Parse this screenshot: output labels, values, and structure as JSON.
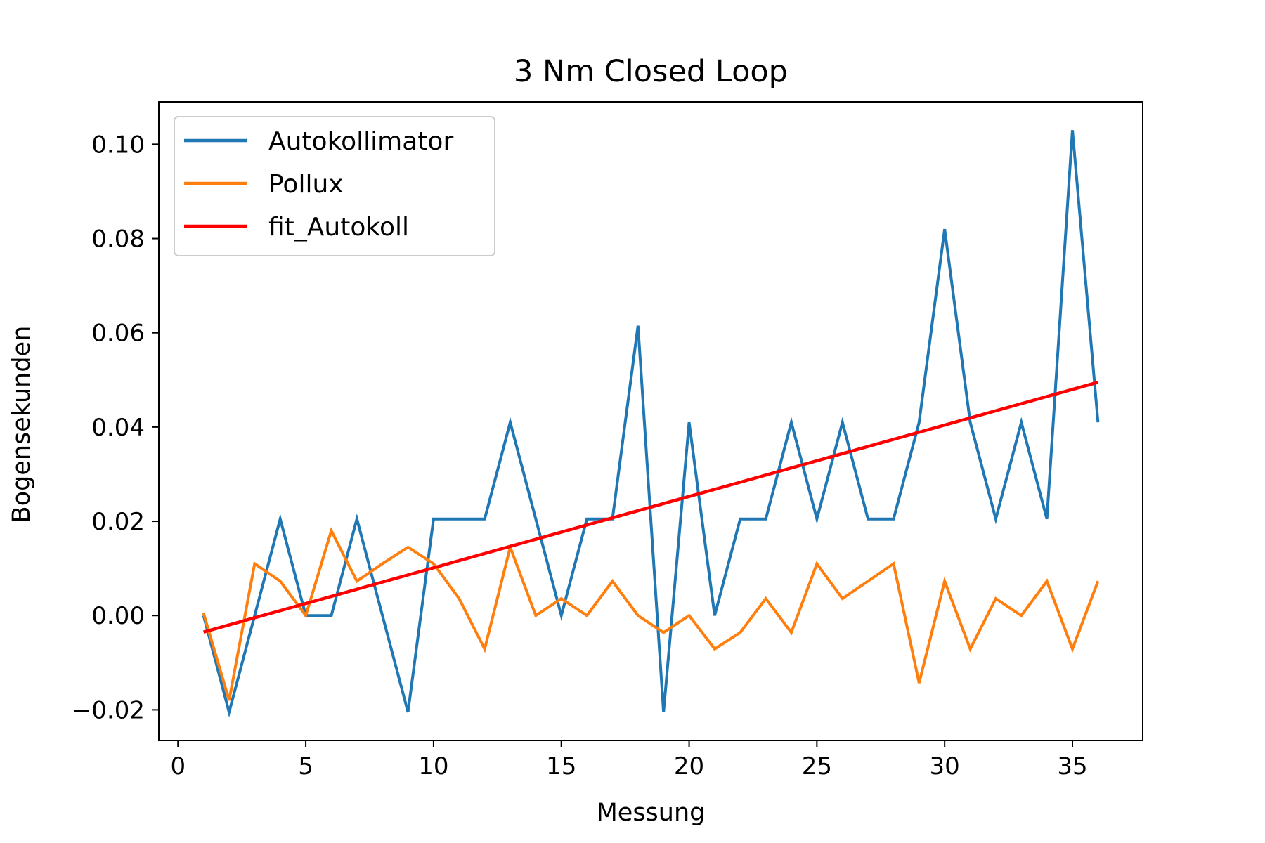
{
  "chart_data": {
    "type": "line",
    "title": "3 Nm Closed Loop",
    "xlabel": "Messung",
    "ylabel": "Bogensekunden",
    "xlim": [
      -0.75,
      37.75
    ],
    "ylim": [
      -0.0265,
      0.109
    ],
    "xticks": [
      0,
      5,
      10,
      15,
      20,
      25,
      30,
      35
    ],
    "xtick_labels": [
      "0",
      "5",
      "10",
      "15",
      "20",
      "25",
      "30",
      "35"
    ],
    "yticks": [
      -0.02,
      0,
      0.02,
      0.04,
      0.06,
      0.08,
      0.1
    ],
    "ytick_labels": [
      "−0.02",
      "0.00",
      "0.02",
      "0.04",
      "0.06",
      "0.08",
      "0.10"
    ],
    "grid": false,
    "legend_position": "top-left",
    "x": [
      1,
      2,
      3,
      4,
      5,
      6,
      7,
      8,
      9,
      10,
      11,
      12,
      13,
      14,
      15,
      16,
      17,
      18,
      19,
      20,
      21,
      22,
      23,
      24,
      25,
      26,
      27,
      28,
      29,
      30,
      31,
      32,
      33,
      34,
      35,
      36
    ],
    "series": [
      {
        "name": "Autokollimator",
        "color": "#1f77b4",
        "values": [
          0.0,
          -0.0205,
          0.0,
          0.0205,
          0.0,
          0.0,
          0.0205,
          0.0,
          -0.0205,
          0.0205,
          0.0205,
          0.0205,
          0.041,
          0.0205,
          0.0,
          0.0205,
          0.0205,
          0.0615,
          -0.0205,
          0.041,
          0.0,
          0.0205,
          0.0205,
          0.041,
          0.0205,
          0.041,
          0.0205,
          0.0205,
          0.041,
          0.082,
          0.041,
          0.0205,
          0.041,
          0.0205,
          0.103,
          0.041
        ]
      },
      {
        "name": "Pollux",
        "color": "#ff7f0e",
        "values": [
          0.0005,
          -0.018,
          0.011,
          0.0073,
          0.0,
          0.018,
          0.0073,
          0.011,
          0.0145,
          0.011,
          0.0036,
          -0.0071,
          0.0145,
          0.0,
          0.0036,
          0.0,
          0.0073,
          0.0,
          -0.0036,
          0.0,
          -0.0071,
          -0.0036,
          0.0036,
          -0.0036,
          0.011,
          0.0036,
          0.0073,
          0.011,
          -0.0143,
          0.0073,
          -0.0071,
          0.0036,
          0.0,
          0.0073,
          -0.0071,
          0.0073
        ]
      },
      {
        "name": "fit_Autokoll",
        "color": "#ff0000",
        "x": [
          1,
          36
        ],
        "values": [
          -0.0035,
          0.0495
        ]
      }
    ]
  }
}
